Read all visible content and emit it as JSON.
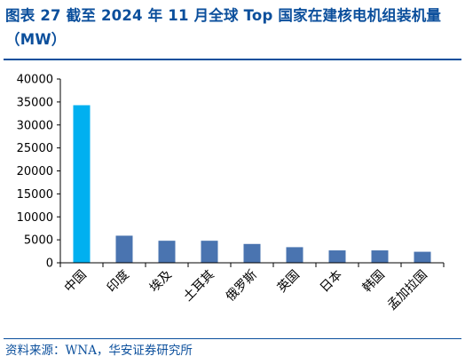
{
  "header": {
    "title": "图表 27 截至 2024 年 11 月全球 Top 国家在建核电机组装机量（MW）"
  },
  "footer": {
    "source": "资料来源：WNA，华安证券研究所"
  },
  "colors": {
    "title": "#0b4f9c",
    "highlight_bar": "#00b0f0",
    "bar": "#4a74b0",
    "axis": "#000000"
  },
  "chart_data": {
    "type": "bar",
    "title": "图表 27 截至 2024 年 11 月全球 Top 国家在建核电机组装机量（MW）",
    "xlabel": "",
    "ylabel": "",
    "categories": [
      "中国",
      "印度",
      "埃及",
      "土耳其",
      "俄罗斯",
      "英国",
      "日本",
      "韩国",
      "孟加拉国"
    ],
    "values": [
      34300,
      5900,
      4800,
      4800,
      4100,
      3400,
      2700,
      2700,
      2400
    ],
    "highlight_index": 0,
    "ylim": [
      0,
      40000
    ],
    "yticks": [
      0,
      5000,
      10000,
      15000,
      20000,
      25000,
      30000,
      35000,
      40000
    ],
    "ytick_labels": [
      "0",
      "5000",
      "10000",
      "15000",
      "20000",
      "25000",
      "30000",
      "35000",
      "40000"
    ],
    "grid": false,
    "legend": "none"
  }
}
